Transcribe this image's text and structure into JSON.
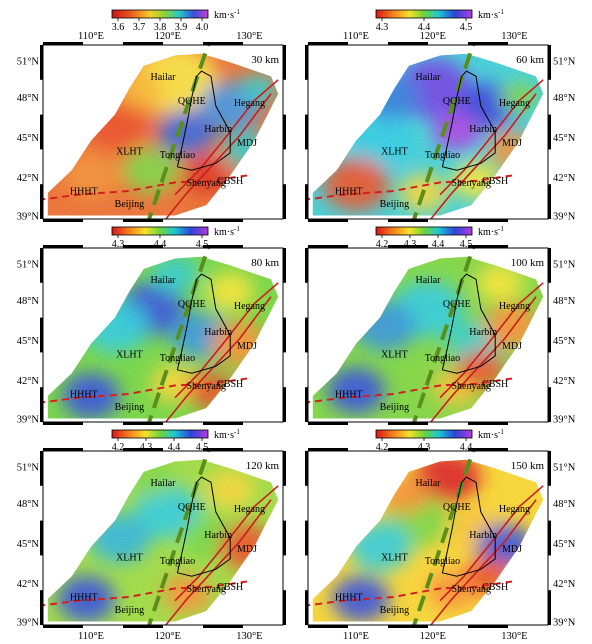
{
  "figure": {
    "lon_ticks": [
      "110°E",
      "120°E",
      "130°E"
    ],
    "lat_ticks": [
      "51°N",
      "48°N",
      "45°N",
      "42°N",
      "39°N"
    ],
    "place_labels": {
      "hailar": "Hailar",
      "qqhe": "QQHE",
      "hegang": "Hegang",
      "harbin": "Harbin",
      "mdj": "MDJ",
      "xlht": "XLHT",
      "tongliao": "Tongliao",
      "shenyang": "Shenyang",
      "cbsh": "CBSH",
      "hhht": "HHHT",
      "beijing": "Beijing"
    },
    "unit": "km·s",
    "unit_exp": "-1",
    "colors": {
      "fault_dashed": "#d42020",
      "fault_solid": "#c81e1e",
      "ngl_belt": "#5a8f1e",
      "basin_outline": "#000000"
    }
  },
  "panels": [
    {
      "depth": "30 km",
      "ticks": [
        "3.6",
        "3.7",
        "3.8",
        "3.9",
        "4.0"
      ],
      "colorbar": "cb1",
      "palette": "slow"
    },
    {
      "depth": "60 km",
      "ticks": [
        "4.3",
        "4.4",
        "4.5"
      ],
      "colorbar": "cb2",
      "palette": "fast"
    },
    {
      "depth": "80 km",
      "ticks": [
        "4.3",
        "4.4",
        "4.5"
      ],
      "colorbar": "cb2",
      "palette": "mid"
    },
    {
      "depth": "100 km",
      "ticks": [
        "4.2",
        "4.3",
        "4.4",
        "4.5"
      ],
      "colorbar": "cb2",
      "palette": "mid2"
    },
    {
      "depth": "120 km",
      "ticks": [
        "4.2",
        "4.3",
        "4.4",
        "4.5"
      ],
      "colorbar": "cb2",
      "palette": "mid3"
    },
    {
      "depth": "150 km",
      "ticks": [
        "4.2",
        "4.3",
        "4.4"
      ],
      "colorbar": "cb2",
      "palette": "deep"
    }
  ]
}
